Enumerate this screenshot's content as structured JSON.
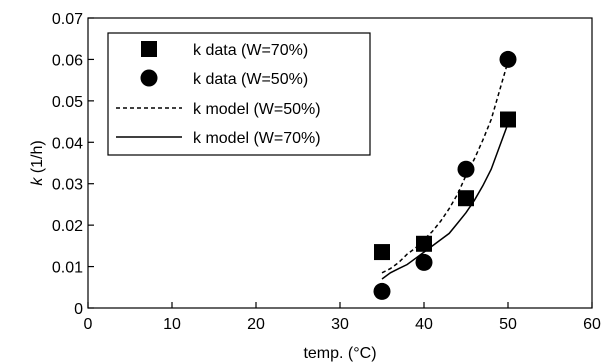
{
  "chart_data": {
    "type": "scatter",
    "xlabel": "temp. (°C)",
    "ylabel_italic": "k",
    "ylabel_unit": " (1/h)",
    "xlim": [
      0,
      60
    ],
    "ylim": [
      0,
      0.07
    ],
    "x_ticks": [
      "0",
      "10",
      "20",
      "30",
      "40",
      "50",
      "60"
    ],
    "y_ticks": [
      "0",
      "0.01",
      "0.02",
      "0.03",
      "0.04",
      "0.05",
      "0.06",
      "0.07"
    ],
    "grid": false,
    "legend_position": "top-left",
    "series": [
      {
        "name": "k data (W=70%)",
        "kind": "markers",
        "marker": "square",
        "color": "#000000",
        "x": [
          35,
          40,
          45,
          50
        ],
        "y": [
          0.0135,
          0.0155,
          0.0265,
          0.0455
        ]
      },
      {
        "name": "k data (W=50%)",
        "kind": "markers",
        "marker": "circle",
        "color": "#000000",
        "x": [
          35,
          40,
          45,
          50
        ],
        "y": [
          0.004,
          0.011,
          0.0335,
          0.06
        ]
      },
      {
        "name": "k model (W=50%)",
        "kind": "line",
        "style": "dotted",
        "color": "#000000",
        "x": [
          35,
          36,
          37,
          38,
          39,
          40,
          41,
          42,
          43,
          44,
          45,
          46,
          47,
          48,
          49,
          50
        ],
        "y": [
          0.0085,
          0.0095,
          0.011,
          0.013,
          0.0145,
          0.0165,
          0.0185,
          0.021,
          0.024,
          0.0275,
          0.032,
          0.036,
          0.0405,
          0.0455,
          0.0525,
          0.0595
        ]
      },
      {
        "name": "k model (W=70%)",
        "kind": "line",
        "style": "solid",
        "color": "#000000",
        "x": [
          35,
          36,
          37,
          38,
          39,
          40,
          41,
          42,
          43,
          44,
          45,
          46,
          47,
          48,
          49,
          50
        ],
        "y": [
          0.007,
          0.0085,
          0.0095,
          0.0105,
          0.012,
          0.0135,
          0.015,
          0.0165,
          0.018,
          0.0205,
          0.023,
          0.026,
          0.0295,
          0.0335,
          0.039,
          0.0445
        ]
      }
    ]
  }
}
